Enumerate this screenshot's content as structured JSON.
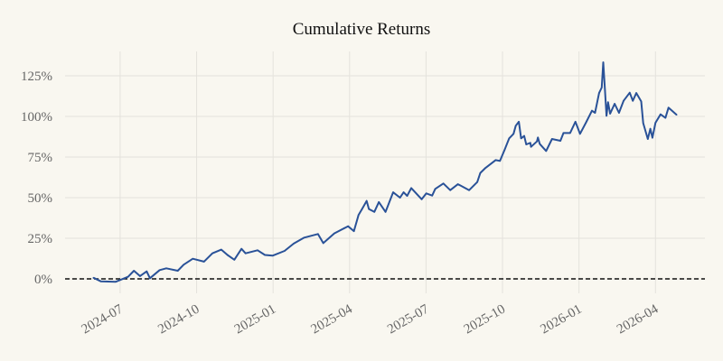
{
  "chart_data": {
    "type": "line",
    "title": "Cumulative Returns",
    "xlabel": "",
    "ylabel": "",
    "x_unit": "months since 2024-07-01",
    "xlim": [
      -2.16,
      22.94
    ],
    "ylim": [
      -8,
      140
    ],
    "grid": true,
    "x_ticks": [
      {
        "value": 0,
        "label": "2024-07"
      },
      {
        "value": 3,
        "label": "2024-10"
      },
      {
        "value": 6,
        "label": "2025-01"
      },
      {
        "value": 9,
        "label": "2025-04"
      },
      {
        "value": 12,
        "label": "2025-07"
      },
      {
        "value": 15,
        "label": "2025-10"
      },
      {
        "value": 18,
        "label": "2026-01"
      },
      {
        "value": 21,
        "label": "2026-04"
      }
    ],
    "y_ticks": [
      {
        "value": 0,
        "label": "0%"
      },
      {
        "value": 25,
        "label": "25%"
      },
      {
        "value": 50,
        "label": "50%"
      },
      {
        "value": 75,
        "label": "75%"
      },
      {
        "value": 100,
        "label": "100%"
      },
      {
        "value": 125,
        "label": "125%"
      }
    ],
    "reference_line": {
      "y": 0,
      "style": "dashed",
      "color": "#111111"
    },
    "series": [
      {
        "name": "Cumulative Returns",
        "color": "#2a5298",
        "x": [
          -1.05,
          -0.76,
          -0.17,
          0.31,
          0.54,
          0.78,
          1.04,
          1.17,
          1.55,
          1.81,
          2.26,
          2.49,
          2.85,
          3.29,
          3.62,
          3.97,
          4.21,
          4.48,
          4.76,
          4.92,
          5.39,
          5.68,
          5.98,
          6.45,
          6.81,
          7.22,
          7.76,
          7.97,
          8.4,
          8.94,
          9.17,
          9.35,
          9.49,
          9.67,
          9.76,
          9.97,
          10.15,
          10.41,
          10.71,
          10.98,
          11.12,
          11.26,
          11.42,
          11.83,
          12.01,
          12.24,
          12.36,
          12.68,
          12.95,
          13.25,
          13.69,
          14.01,
          14.13,
          14.31,
          14.73,
          14.9,
          15.08,
          15.26,
          15.43,
          15.52,
          15.64,
          15.73,
          15.85,
          15.93,
          16.09,
          16.12,
          16.35,
          16.39,
          16.46,
          16.71,
          16.94,
          17.27,
          17.39,
          17.65,
          17.86,
          18.04,
          18.27,
          18.51,
          18.63,
          18.79,
          18.89,
          18.95,
          19.02,
          19.08,
          19.14,
          19.22,
          19.4,
          19.57,
          19.75,
          19.99,
          20.11,
          20.25,
          20.44,
          20.52,
          20.7,
          20.8,
          20.88,
          21.0,
          21.2,
          21.39,
          21.51,
          21.83
        ],
        "y": [
          0.7,
          -1.5,
          -1.8,
          1.3,
          5.0,
          1.7,
          4.6,
          0.4,
          5.4,
          6.5,
          5.0,
          8.7,
          12.4,
          10.6,
          15.7,
          18.0,
          14.7,
          11.8,
          18.5,
          15.7,
          17.6,
          14.7,
          14.3,
          17.2,
          21.7,
          25.4,
          27.6,
          22.0,
          28.0,
          32.4,
          29.4,
          39.3,
          43.0,
          48.0,
          43.0,
          41.2,
          47.3,
          41.2,
          53.3,
          50.0,
          53.3,
          51.1,
          55.9,
          49.0,
          52.6,
          51.3,
          55.4,
          58.7,
          54.6,
          58.3,
          54.6,
          59.6,
          65.2,
          68.0,
          73.1,
          72.6,
          79.4,
          86.5,
          89.3,
          94.3,
          96.7,
          86.5,
          88.0,
          82.8,
          83.7,
          81.3,
          84.6,
          87.0,
          83.1,
          78.7,
          86.1,
          85.0,
          89.8,
          89.8,
          96.7,
          89.3,
          96.1,
          103.5,
          102.2,
          114.4,
          117.8,
          133.3,
          116.1,
          100.4,
          108.7,
          101.7,
          107.8,
          102.2,
          109.6,
          114.6,
          109.6,
          114.4,
          109.2,
          95.9,
          86.1,
          92.4,
          86.9,
          96.1,
          101.3,
          99.1,
          105.4,
          101.0
        ]
      }
    ]
  }
}
